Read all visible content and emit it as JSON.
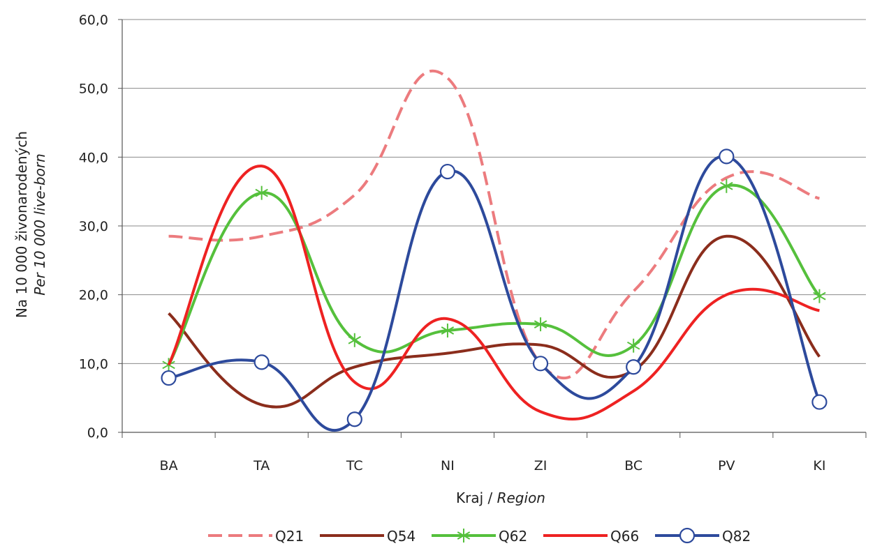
{
  "chart_data": {
    "type": "line",
    "categories": [
      "BA",
      "TA",
      "TC",
      "NI",
      "ZI",
      "BC",
      "PV",
      "KI"
    ],
    "ylim": [
      0,
      60
    ],
    "yticks": [
      "0,0",
      "10,0",
      "20,0",
      "30,0",
      "40,0",
      "50,0",
      "60,0"
    ],
    "ylabel_line1": "Na 10 000 živonarodených",
    "ylabel_line2": "Per 10 000 live-born",
    "xlabel_main": "Kraj / ",
    "xlabel_italic": "Region",
    "grid": true,
    "legend_position": "bottom",
    "series": [
      {
        "name": "Q21",
        "color": "#ec7b7e",
        "dash": "dashed",
        "marker": "none",
        "values": [
          28.5,
          28.5,
          34.5,
          51.5,
          10.0,
          20.5,
          37.0,
          34.0
        ]
      },
      {
        "name": "Q54",
        "color": "#8b2d1c",
        "dash": "solid",
        "marker": "none",
        "values": [
          17.3,
          4.0,
          9.5,
          11.5,
          12.7,
          9.0,
          28.5,
          11.0
        ]
      },
      {
        "name": "Q62",
        "color": "#55c03c",
        "dash": "solid",
        "marker": "star",
        "values": [
          9.8,
          34.8,
          13.4,
          14.8,
          15.7,
          12.6,
          35.8,
          19.8
        ]
      },
      {
        "name": "Q66",
        "color": "#ee2222",
        "dash": "solid",
        "marker": "none",
        "values": [
          9.8,
          38.7,
          7.3,
          16.5,
          3.0,
          6.0,
          20.0,
          17.7
        ]
      },
      {
        "name": "Q82",
        "color": "#2d4a9c",
        "dash": "solid",
        "marker": "circle",
        "values": [
          7.9,
          10.2,
          1.9,
          37.9,
          10.0,
          9.5,
          40.1,
          4.4
        ]
      }
    ]
  }
}
